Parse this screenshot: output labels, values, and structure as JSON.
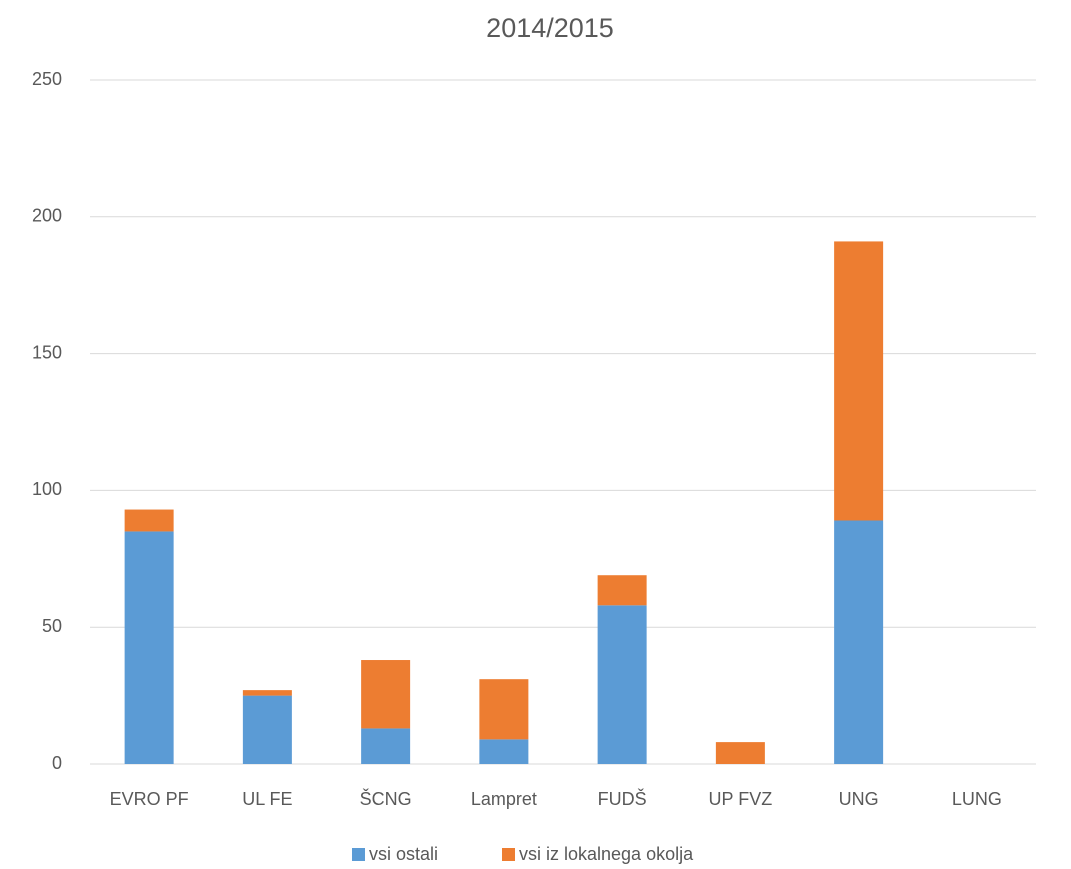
{
  "chart_data": {
    "type": "stacked_bar",
    "title": "2014/2015",
    "categories": [
      "EVRO PF",
      "UL FE",
      "ŠCNG",
      "Lampret",
      "FUDŠ",
      "UP FVZ",
      "UNG",
      "LUNG"
    ],
    "series": [
      {
        "name": "vsi ostali",
        "color": "#5b9bd5",
        "values": [
          85,
          25,
          13,
          9,
          58,
          0,
          89,
          0
        ]
      },
      {
        "name": "vsi iz lokalnega okolja",
        "color": "#ed7d31",
        "values": [
          8,
          2,
          25,
          22,
          11,
          8,
          102,
          0
        ]
      }
    ],
    "ylim": [
      0,
      250
    ],
    "yticks": [
      0,
      50,
      100,
      150,
      200,
      250
    ],
    "grid": true,
    "legend": "bottom"
  }
}
